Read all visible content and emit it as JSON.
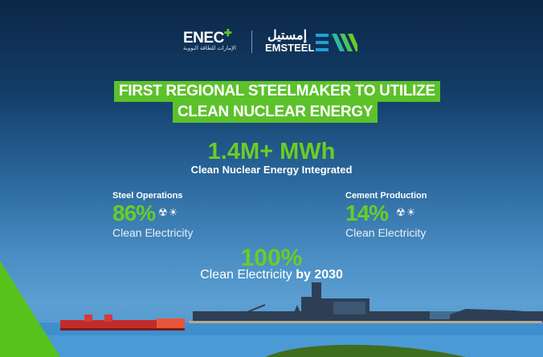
{
  "logos": {
    "enec": "ENEC",
    "enec_arabic": "الإمارات للطاقة النووية",
    "emsteel": "EMSTEEL",
    "emsteel_arabic": "إمستيل"
  },
  "headline": {
    "line1": "FIRST REGIONAL STEELMAKER TO UTILIZE",
    "line2": "CLEAN NUCLEAR ENERGY"
  },
  "main_stat": {
    "value": "1.4M+ MWh",
    "label": "Clean Nuclear Energy Integrated"
  },
  "steel": {
    "title": "Steel Operations",
    "value": "86%",
    "icons": "☢☀",
    "label": "Clean Electricity"
  },
  "cement": {
    "title": "Cement Production",
    "value": "14%",
    "icons": "☢☀",
    "label": "Clean Electricity"
  },
  "target": {
    "value": "100%",
    "label": "Clean Electricity",
    "label_bold": "by 2030"
  },
  "colors": {
    "accent_green": "#5cc12a",
    "navy": "#0c2747",
    "sky": "#5c9fd2"
  }
}
